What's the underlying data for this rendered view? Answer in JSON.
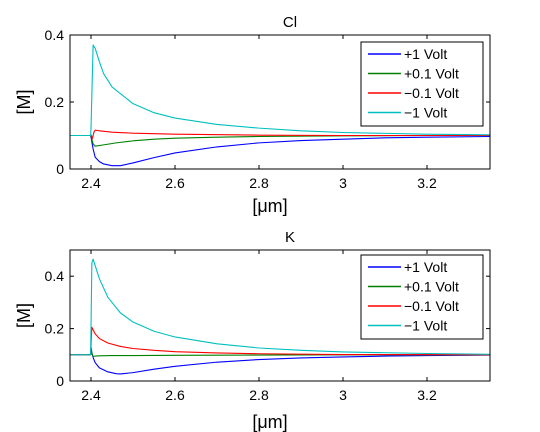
{
  "chart_data": [
    {
      "type": "line",
      "title": "Cl",
      "xlabel": "[μm]",
      "ylabel": "[M]",
      "xlim": [
        2.35,
        3.35
      ],
      "ylim": [
        0,
        0.4
      ],
      "xticks": [
        2.4,
        2.6,
        2.8,
        3,
        3.2
      ],
      "yticks": [
        0,
        0.2,
        0.4
      ],
      "xtick_labels": [
        "2.4",
        "2.6",
        "2.8",
        "3",
        "3.2"
      ],
      "ytick_labels": [
        "0",
        "0.2",
        "0.4"
      ],
      "grid": false,
      "legend_position": "top-right",
      "series": [
        {
          "name": "+1 Volt",
          "color": "#0000ff",
          "x": [
            2.35,
            2.399,
            2.4,
            2.405,
            2.41,
            2.42,
            2.43,
            2.45,
            2.47,
            2.5,
            2.55,
            2.6,
            2.7,
            2.8,
            2.9,
            3.0,
            3.1,
            3.2,
            3.35
          ],
          "y": [
            0.1,
            0.1,
            0.095,
            0.06,
            0.035,
            0.022,
            0.015,
            0.01,
            0.01,
            0.018,
            0.034,
            0.048,
            0.066,
            0.078,
            0.085,
            0.089,
            0.093,
            0.095,
            0.097
          ]
        },
        {
          "name": "+0.1 Volt",
          "color": "#008000",
          "x": [
            2.35,
            2.399,
            2.4,
            2.405,
            2.41,
            2.43,
            2.46,
            2.5,
            2.55,
            2.6,
            2.7,
            2.8,
            3.0,
            3.2,
            3.35
          ],
          "y": [
            0.1,
            0.1,
            0.098,
            0.075,
            0.068,
            0.072,
            0.078,
            0.084,
            0.089,
            0.092,
            0.095,
            0.097,
            0.099,
            0.1,
            0.1
          ]
        },
        {
          "name": "−0.1 Volt",
          "color": "#ff0000",
          "x": [
            2.35,
            2.399,
            2.4,
            2.403,
            2.407,
            2.41,
            2.42,
            2.45,
            2.5,
            2.6,
            2.8,
            3.0,
            3.35
          ],
          "y": [
            0.1,
            0.1,
            0.102,
            0.09,
            0.11,
            0.116,
            0.114,
            0.11,
            0.107,
            0.104,
            0.101,
            0.1,
            0.1
          ]
        },
        {
          "name": "−1 Volt",
          "color": "#00bfbf",
          "x": [
            2.35,
            2.399,
            2.4,
            2.405,
            2.41,
            2.42,
            2.43,
            2.45,
            2.5,
            2.55,
            2.6,
            2.7,
            2.8,
            2.9,
            3.0,
            3.2,
            3.35
          ],
          "y": [
            0.1,
            0.1,
            0.12,
            0.37,
            0.36,
            0.32,
            0.285,
            0.245,
            0.195,
            0.168,
            0.152,
            0.133,
            0.122,
            0.114,
            0.109,
            0.104,
            0.102
          ]
        }
      ]
    },
    {
      "type": "line",
      "title": "K",
      "xlabel": "[μm]",
      "ylabel": "[M]",
      "xlim": [
        2.35,
        3.35
      ],
      "ylim": [
        0,
        0.5
      ],
      "xticks": [
        2.4,
        2.6,
        2.8,
        3,
        3.2
      ],
      "yticks": [
        0,
        0.2,
        0.4
      ],
      "xtick_labels": [
        "2.4",
        "2.6",
        "2.8",
        "3",
        "3.2"
      ],
      "ytick_labels": [
        "0",
        "0.2",
        "0.4"
      ],
      "grid": false,
      "legend_position": "top-right",
      "series": [
        {
          "name": "+1 Volt",
          "color": "#0000ff",
          "x": [
            2.35,
            2.399,
            2.4,
            2.405,
            2.41,
            2.42,
            2.44,
            2.46,
            2.47,
            2.5,
            2.55,
            2.6,
            2.7,
            2.8,
            2.9,
            3.0,
            3.1,
            3.2,
            3.35
          ],
          "y": [
            0.1,
            0.1,
            0.12,
            0.09,
            0.07,
            0.05,
            0.035,
            0.028,
            0.027,
            0.032,
            0.045,
            0.056,
            0.072,
            0.082,
            0.088,
            0.092,
            0.095,
            0.097,
            0.099
          ]
        },
        {
          "name": "+0.1 Volt",
          "color": "#008000",
          "x": [
            2.35,
            2.399,
            2.4,
            2.403,
            2.405,
            2.41,
            2.42,
            2.45,
            2.5,
            2.6,
            2.8,
            3.0,
            3.35
          ],
          "y": [
            0.1,
            0.1,
            0.13,
            0.1,
            0.094,
            0.095,
            0.096,
            0.097,
            0.097,
            0.098,
            0.099,
            0.1,
            0.1
          ]
        },
        {
          "name": "−0.1 Volt",
          "color": "#ff0000",
          "x": [
            2.35,
            2.399,
            2.4,
            2.402,
            2.41,
            2.42,
            2.44,
            2.47,
            2.5,
            2.55,
            2.6,
            2.7,
            2.8,
            3.0,
            3.35
          ],
          "y": [
            0.1,
            0.1,
            0.14,
            0.205,
            0.18,
            0.162,
            0.145,
            0.132,
            0.124,
            0.117,
            0.112,
            0.107,
            0.104,
            0.101,
            0.1
          ]
        },
        {
          "name": "−1 Volt",
          "color": "#00bfbf",
          "x": [
            2.35,
            2.399,
            2.4,
            2.402,
            2.405,
            2.41,
            2.42,
            2.44,
            2.47,
            2.5,
            2.55,
            2.6,
            2.7,
            2.8,
            2.9,
            3.0,
            3.2,
            3.35
          ],
          "y": [
            0.1,
            0.1,
            0.2,
            0.45,
            0.465,
            0.44,
            0.39,
            0.32,
            0.26,
            0.225,
            0.19,
            0.168,
            0.142,
            0.126,
            0.117,
            0.111,
            0.105,
            0.102
          ]
        }
      ]
    }
  ]
}
